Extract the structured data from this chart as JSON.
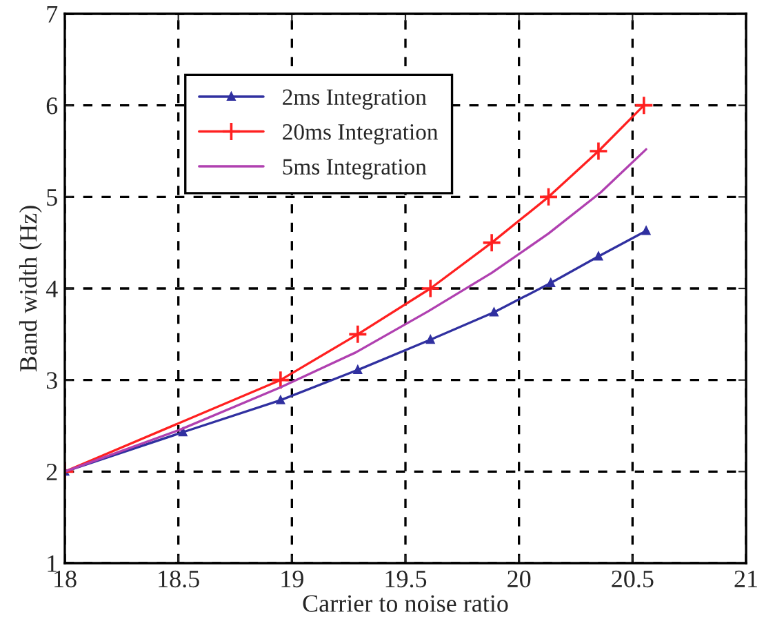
{
  "chart_data": {
    "type": "line",
    "xlabel": "Carrier to noise ratio",
    "ylabel": "Band width (Hz)",
    "xlim": [
      18,
      21
    ],
    "xticks": [
      18,
      18.5,
      19,
      19.5,
      20,
      20.5,
      21
    ],
    "ylim": [
      1,
      7
    ],
    "yticks": [
      1,
      2,
      3,
      4,
      5,
      6,
      7
    ],
    "grid": true,
    "legend": "top left",
    "line_style": "solid",
    "series": [
      {
        "name": "2ms Integration",
        "color": "#3030a0",
        "marker": "triangle",
        "x": [
          18,
          18.52,
          18.95,
          19.29,
          19.61,
          19.89,
          20.14,
          20.35,
          20.56
        ],
        "values": [
          2,
          2.43,
          2.78,
          3.11,
          3.44,
          3.74,
          4.06,
          4.35,
          4.63
        ]
      },
      {
        "name": "20ms Integration",
        "color": "#ff2020",
        "marker": "cross",
        "x": [
          18,
          18.95,
          19.29,
          19.61,
          19.88,
          20.13,
          20.35,
          20.55
        ],
        "values": [
          2,
          3,
          3.5,
          4,
          4.5,
          5,
          5.5,
          6
        ]
      },
      {
        "name": "5ms Integration",
        "color": "#b040b0",
        "marker": "none",
        "x": [
          18,
          18.5,
          18.95,
          19.28,
          19.6,
          19.88,
          20.13,
          20.36,
          20.56
        ],
        "values": [
          2,
          2.45,
          2.92,
          3.3,
          3.75,
          4.17,
          4.6,
          5.05,
          5.52
        ]
      }
    ]
  }
}
